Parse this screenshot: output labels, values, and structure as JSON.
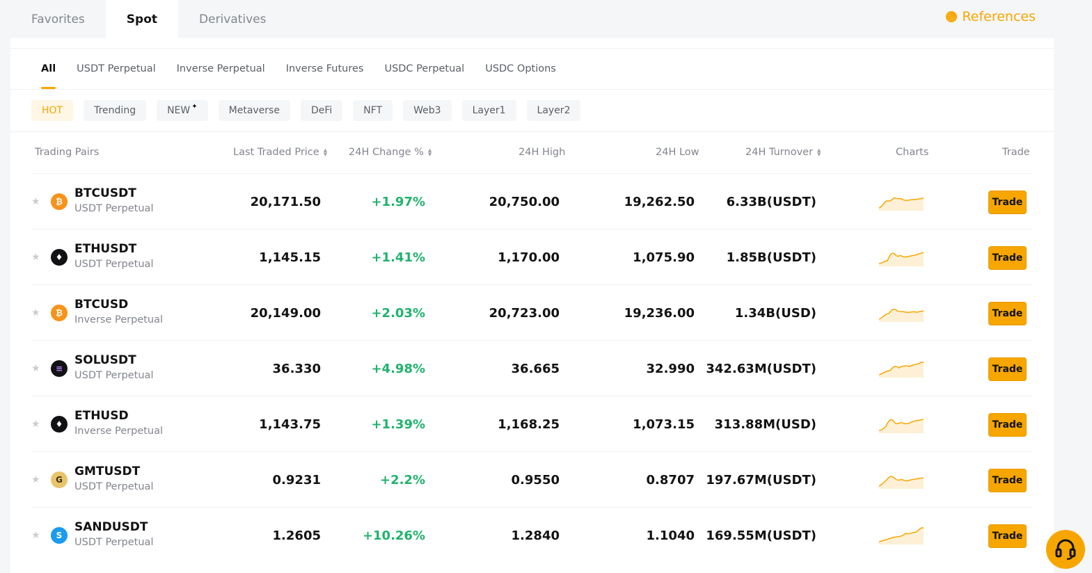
{
  "top_tabs": [
    "Favorites",
    "Spot",
    "Derivatives"
  ],
  "references_label": "References",
  "sub_tabs": [
    "All",
    "USDT Perpetual",
    "Inverse Perpetual",
    "Inverse Futures",
    "USDC Perpetual",
    "USDC Options"
  ],
  "chips": [
    "HOT",
    "Trending",
    "NEW",
    "Metaverse",
    "DeFi",
    "NFT",
    "Web3",
    "Layer1",
    "Layer2"
  ],
  "columns": {
    "pairs": "Trading Pairs",
    "last": "Last Traded Price",
    "change": "24H Change %",
    "high": "24H High",
    "low": "24H Low",
    "turnover": "24H Turnover",
    "charts": "Charts",
    "trade": "Trade"
  },
  "rows": [
    {
      "symbol": "BTCUSDT",
      "type": "USDT Perpetual",
      "last": "20,171.50",
      "change": "+1.97%",
      "high": "20,750.00",
      "low": "19,262.50",
      "turnover": "6.33B(USDT)",
      "trade": "Trade",
      "coin_icon": "bitcoin-icon"
    },
    {
      "symbol": "ETHUSDT",
      "type": "USDT Perpetual",
      "last": "1,145.15",
      "change": "+1.41%",
      "high": "1,170.00",
      "low": "1,075.90",
      "turnover": "1.85B(USDT)",
      "trade": "Trade",
      "coin_icon": "ethereum-icon"
    },
    {
      "symbol": "BTCUSD",
      "type": "Inverse Perpetual",
      "last": "20,149.00",
      "change": "+2.03%",
      "high": "20,723.00",
      "low": "19,236.00",
      "turnover": "1.34B(USD)",
      "trade": "Trade",
      "coin_icon": "bitcoin-icon"
    },
    {
      "symbol": "SOLUSDT",
      "type": "USDT Perpetual",
      "last": "36.330",
      "change": "+4.98%",
      "high": "36.665",
      "low": "32.990",
      "turnover": "342.63M(USDT)",
      "trade": "Trade",
      "coin_icon": "solana-icon"
    },
    {
      "symbol": "ETHUSD",
      "type": "Inverse Perpetual",
      "last": "1,143.75",
      "change": "+1.39%",
      "high": "1,168.25",
      "low": "1,073.15",
      "turnover": "313.88M(USD)",
      "trade": "Trade",
      "coin_icon": "ethereum-icon"
    },
    {
      "symbol": "GMTUSDT",
      "type": "USDT Perpetual",
      "last": "0.9231",
      "change": "+2.2%",
      "high": "0.9550",
      "low": "0.8707",
      "turnover": "197.67M(USDT)",
      "trade": "Trade",
      "coin_icon": "gmt-icon"
    },
    {
      "symbol": "SANDUSDT",
      "type": "USDT Perpetual",
      "last": "1.2605",
      "change": "+10.26%",
      "high": "1.2840",
      "low": "1.1040",
      "turnover": "169.55M(USDT)",
      "trade": "Trade",
      "coin_icon": "sandbox-icon"
    }
  ],
  "colors": {
    "accent": "#f7a600",
    "positive": "#20b26c",
    "muted": "#81858c"
  }
}
